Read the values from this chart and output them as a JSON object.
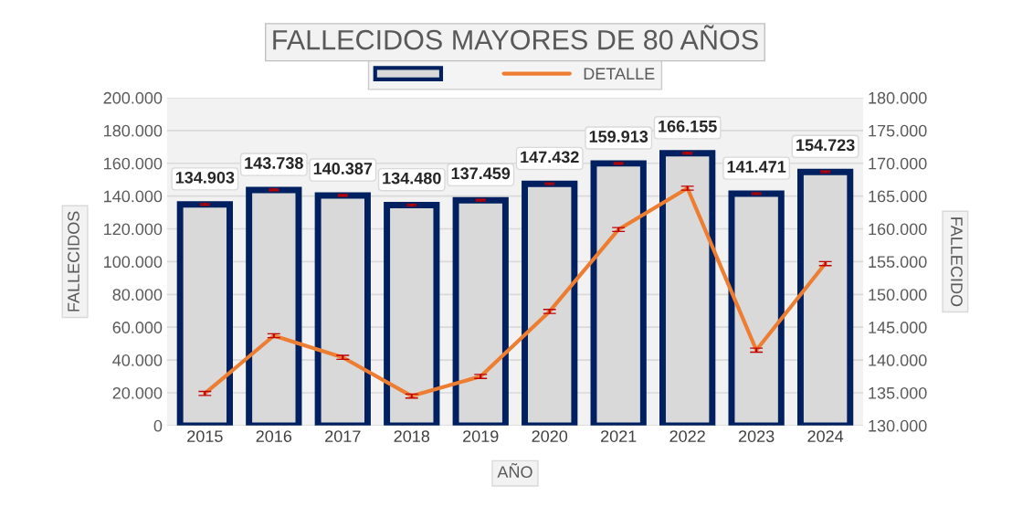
{
  "chart_data": {
    "type": "bar",
    "title": "FALLECIDOS MAYORES DE 80 AÑOS",
    "xlabel": "AÑO",
    "ylabel": "FALLECIDOS",
    "y2label": "FALLECIDO",
    "categories": [
      "2015",
      "2016",
      "2017",
      "2018",
      "2019",
      "2020",
      "2021",
      "2022",
      "2023",
      "2024"
    ],
    "series": [
      {
        "color": "#d9d9d9",
        "values": [
          134903,
          143738,
          140387,
          134480,
          137459,
          147432,
          159913,
          166155,
          141471,
          154723
        ],
        "errors": [
          500,
          500,
          500,
          500,
          500,
          500,
          500,
          500,
          500,
          500
        ],
        "value_labels": [
          "134.903",
          "143.738",
          "140.387",
          "134.480",
          "137.459",
          "147.432",
          "159.913",
          "166.155",
          "141.471",
          "154.723"
        ]
      },
      {
        "type": "line",
        "name": "DETALLE",
        "axis": "y2",
        "color": "#ed7d31",
        "values": [
          134900,
          143700,
          140400,
          134500,
          137500,
          147400,
          159900,
          166200,
          141500,
          154700
        ],
        "errors": [
          300,
          300,
          300,
          300,
          300,
          300,
          300,
          300,
          300,
          300
        ]
      }
    ],
    "ylim": [
      0,
      200000
    ],
    "yticks": [
      {
        "value": 0,
        "label": "0"
      },
      {
        "value": 20000,
        "label": "20.000"
      },
      {
        "value": 40000,
        "label": "40.000"
      },
      {
        "value": 60000,
        "label": "60.000"
      },
      {
        "value": 80000,
        "label": "80.000"
      },
      {
        "value": 100000,
        "label": "100.000"
      },
      {
        "value": 120000,
        "label": "120.000"
      },
      {
        "value": 140000,
        "label": "140.000"
      },
      {
        "value": 160000,
        "label": "160.000"
      },
      {
        "value": 180000,
        "label": "180.000"
      },
      {
        "value": 200000,
        "label": "200.000"
      }
    ],
    "y2lim": [
      130000,
      180000
    ],
    "y2ticks": [
      {
        "value": 130000,
        "label": "130.000"
      },
      {
        "value": 135000,
        "label": "135.000"
      },
      {
        "value": 140000,
        "label": "140.000"
      },
      {
        "value": 145000,
        "label": "145.000"
      },
      {
        "value": 150000,
        "label": "150.000"
      },
      {
        "value": 155000,
        "label": "155.000"
      },
      {
        "value": 160000,
        "label": "160.000"
      },
      {
        "value": 165000,
        "label": "165.000"
      },
      {
        "value": 170000,
        "label": "170.000"
      },
      {
        "value": 175000,
        "label": "175.000"
      },
      {
        "value": 180000,
        "label": "180.000"
      }
    ],
    "grid": "y",
    "legend": "top",
    "marker": "none",
    "line_style": "solid"
  }
}
